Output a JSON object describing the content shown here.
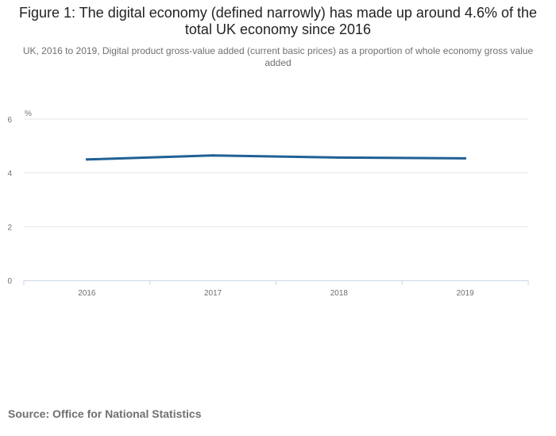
{
  "title": "Figure 1: The digital economy (defined narrowly) has made up around 4.6% of the total UK economy since 2016",
  "subtitle": "UK, 2016 to 2019, Digital product gross-value added (current basic prices) as a proportion of whole economy gross value added",
  "source": "Source: Office for National Statistics",
  "colors": {
    "series": "#206095",
    "grid": "#e6e6e6",
    "axis": "#ccd6eb",
    "tick_text": "#707070"
  },
  "chart_data": {
    "type": "line",
    "categories": [
      "2016",
      "2017",
      "2018",
      "2019"
    ],
    "series": [
      {
        "values": [
          4.5,
          4.65,
          4.57,
          4.54
        ]
      }
    ],
    "ylabel": "%",
    "yticks": [
      "0",
      "2",
      "4",
      "6"
    ],
    "ylim": [
      0,
      6
    ],
    "grid": true,
    "legend": "none"
  }
}
